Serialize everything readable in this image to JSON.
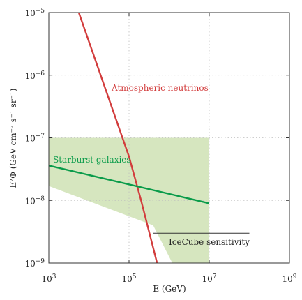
{
  "chart_data": {
    "type": "line",
    "title": "",
    "xlabel": "E (GeV)",
    "ylabel": "E²Φ (GeV cm⁻² s⁻¹ sr⁻¹)",
    "xscale": "log",
    "yscale": "log",
    "xlim": [
      1000,
      1000000000
    ],
    "ylim": [
      1e-09,
      1e-05
    ],
    "grid": "dotted, at major decades",
    "x_ticks": [
      {
        "value": 1000,
        "base": "10",
        "exp": "3"
      },
      {
        "value": 100000,
        "base": "10",
        "exp": "5"
      },
      {
        "value": 10000000,
        "base": "10",
        "exp": "7"
      },
      {
        "value": 1000000000,
        "base": "10",
        "exp": "9"
      }
    ],
    "y_ticks": [
      {
        "value": 1e-09,
        "base": "10",
        "exp": "−9"
      },
      {
        "value": 1e-08,
        "base": "10",
        "exp": "−8"
      },
      {
        "value": 1e-07,
        "base": "10",
        "exp": "−7"
      },
      {
        "value": 1e-06,
        "base": "10",
        "exp": "−6"
      },
      {
        "value": 1e-05,
        "base": "10",
        "exp": "−5"
      }
    ],
    "series": [
      {
        "name": "Atmospheric neutrinos",
        "color": "#d23c3c",
        "x": [
          5600,
          100000,
          200000,
          500000
        ],
        "y": [
          1e-05,
          5e-08,
          1e-08,
          1e-09
        ]
      },
      {
        "name": "Starburst galaxies",
        "color": "#0a9b4a",
        "x": [
          1000,
          10000000
        ],
        "y": [
          3.6e-08,
          9e-09
        ]
      },
      {
        "name": "IceCube sensitivity",
        "color": "#333333",
        "x": [
          400000,
          100000000
        ],
        "y": [
          3e-09,
          3e-09
        ]
      }
    ],
    "bands": [
      {
        "color": "#d6e6bf",
        "x": [
          1000,
          10000000,
          10000000,
          1200000,
          400000,
          1000
        ],
        "y": [
          1e-07,
          1e-07,
          1e-09,
          1e-09,
          4e-09,
          1.7e-08
        ]
      }
    ],
    "annotations": [
      {
        "text": "Atmospheric neutrinos",
        "color": "#d23c3c"
      },
      {
        "text": "Starburst galaxies",
        "color": "#0a9b4a"
      },
      {
        "text": "IceCube sensitivity",
        "color": "#222222"
      }
    ]
  }
}
